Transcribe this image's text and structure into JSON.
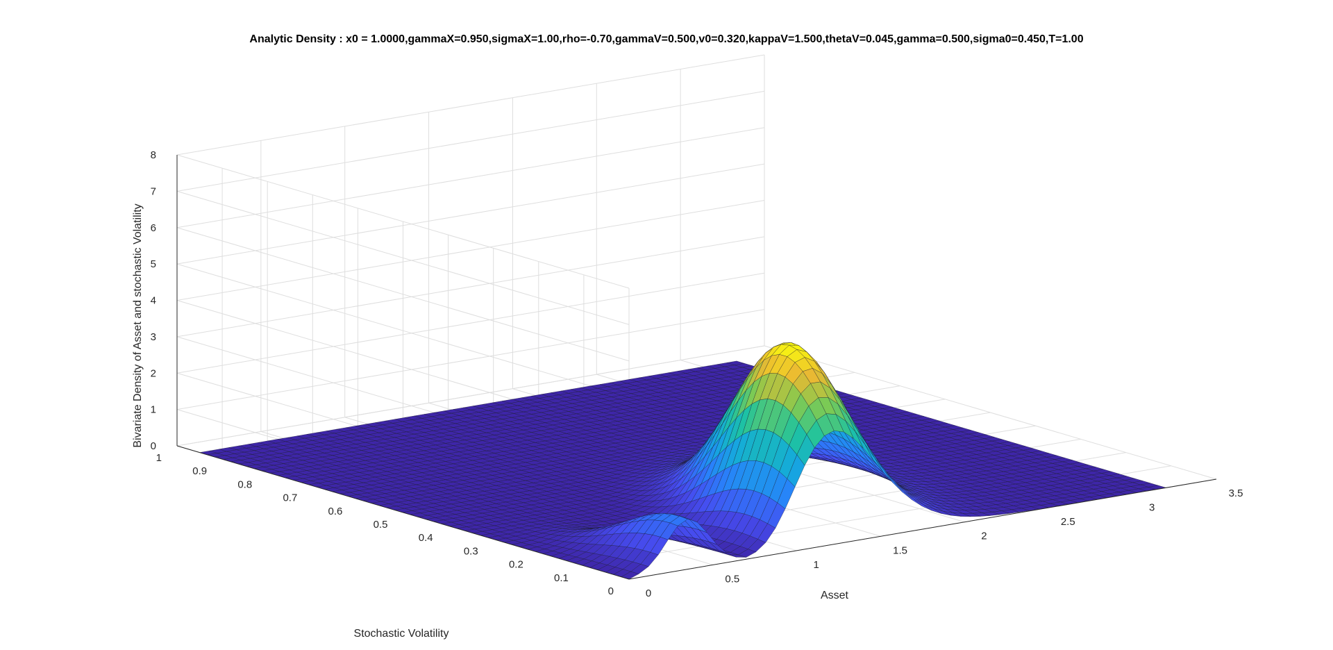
{
  "chart_data": {
    "type": "surface",
    "title": "Analytic Density : x0 = 1.0000,gammaX=0.950,sigmaX=1.00,rho=-0.70,gammaV=0.500,v0=0.320,kappaV=1.500,thetaV=0.045,gamma=0.500,sigma0=0.450,T=1.00",
    "xlabel": "Asset",
    "ylabel": "Stochastic Volatility",
    "zlabel": "Bivariate Density of Asset and stochastic Volatility",
    "xlim": [
      0,
      3.5
    ],
    "ylim": [
      0,
      1
    ],
    "zlim": [
      0,
      8
    ],
    "x_ticks": [
      "0",
      "0.5",
      "1",
      "1.5",
      "2",
      "2.5",
      "3",
      "3.5"
    ],
    "y_ticks": [
      "0",
      "0.1",
      "0.2",
      "0.3",
      "0.4",
      "0.5",
      "0.6",
      "0.7",
      "0.8",
      "0.9",
      "1"
    ],
    "z_ticks": [
      "0",
      "1",
      "2",
      "3",
      "4",
      "5",
      "6",
      "7",
      "8"
    ],
    "grid": true,
    "colormap": "parula",
    "surface": {
      "x_range": [
        0,
        3.2
      ],
      "y_range": [
        0,
        0.95
      ],
      "peak": {
        "x": 1.3,
        "y": 0.08,
        "z": 5.0
      }
    }
  }
}
